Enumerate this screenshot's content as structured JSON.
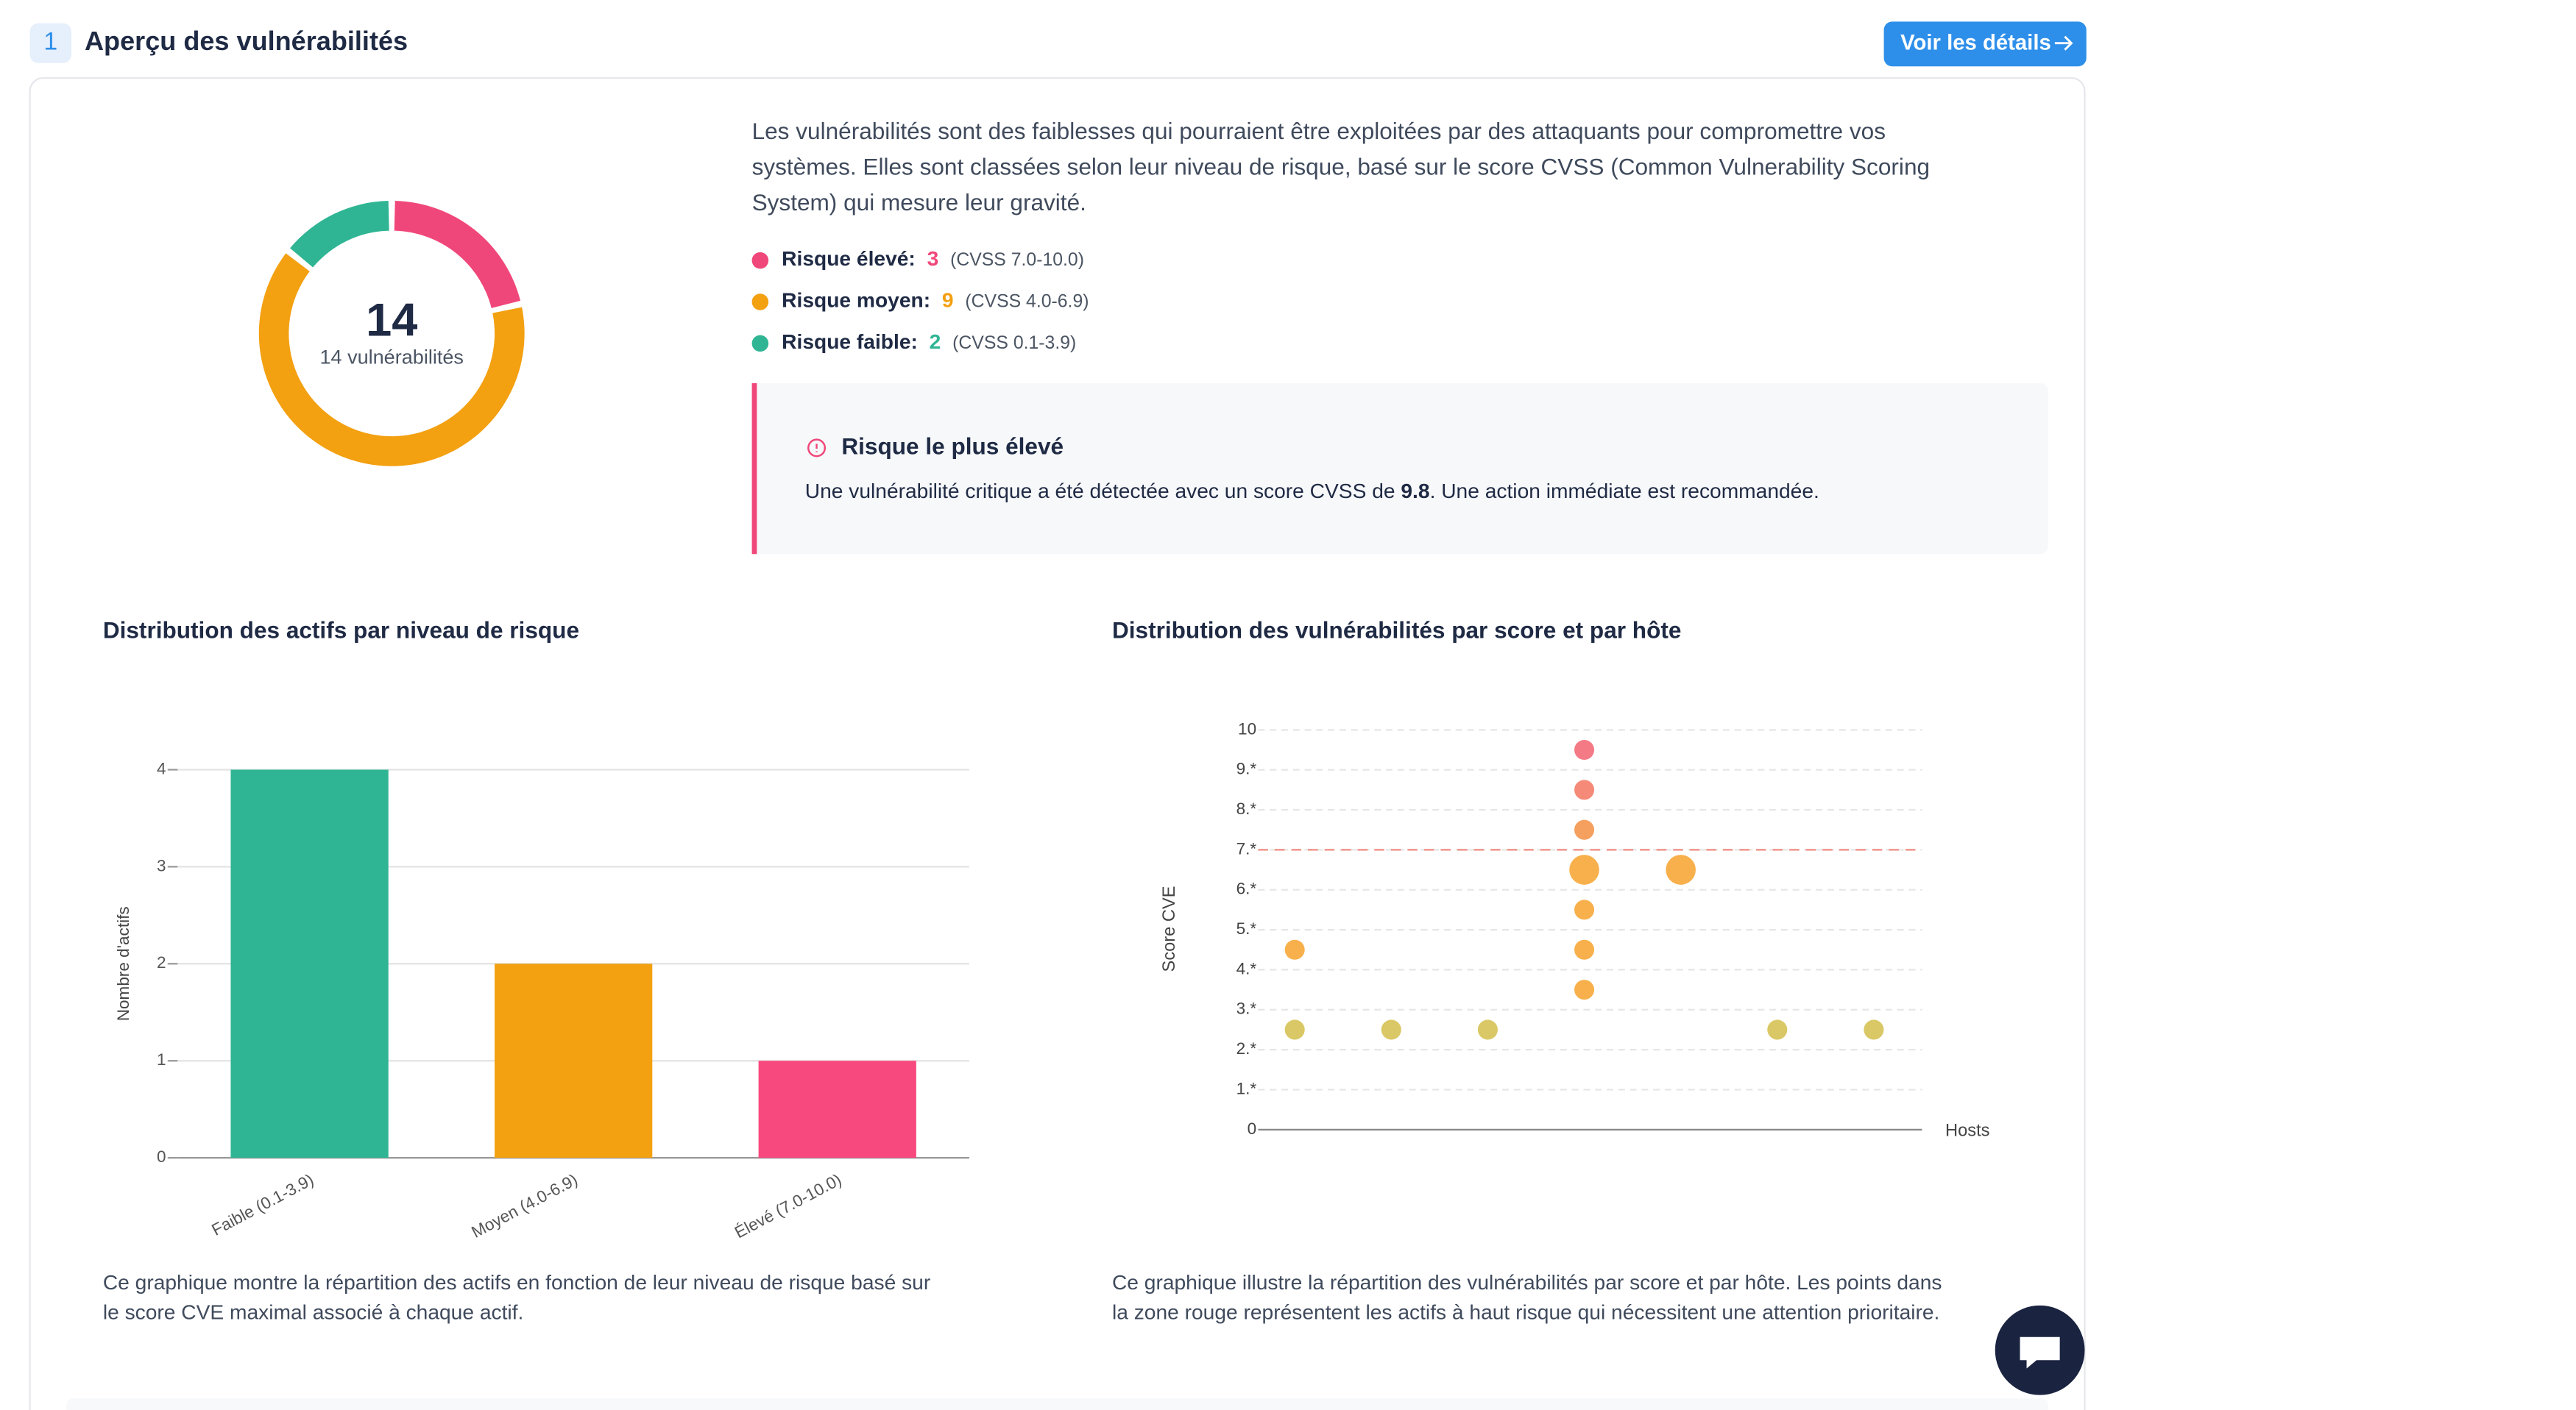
{
  "header": {
    "number": "1",
    "title": "Aperçu des vulnérabilités",
    "button": "Voir les détails"
  },
  "summary": {
    "total": 14,
    "total_label": "14 vulnérabilités",
    "description": [
      "Les vulnérabilités sont des faiblesses qui pourraient être exploitées par des attaquants pour compromettre vos",
      "systèmes. Elles sont classées selon leur niveau de risque, basé sur le score CVSS (Common Vulnerability Scoring",
      "System) qui mesure leur gravité."
    ],
    "risks": [
      {
        "label": "Risque élevé:",
        "count": 3,
        "range": "(CVSS 7.0-10.0)",
        "color": "#f0477a"
      },
      {
        "label": "Risque moyen:",
        "count": 9,
        "range": "(CVSS 4.0-6.9)",
        "color": "#f3a011"
      },
      {
        "label": "Risque faible:",
        "count": 2,
        "range": "(CVSS 0.1-3.9)",
        "color": "#2fb594"
      }
    ]
  },
  "alert": {
    "title": "Risque le plus élevé",
    "text_before": "Une vulnérabilité critique a été détectée avec un score CVSS de ",
    "score": "9.8",
    "text_after": ". Une action immédiate est recommandée."
  },
  "chart_data": [
    {
      "type": "bar",
      "title": "Distribution des actifs par niveau de risque",
      "ylabel": "Nombre d'actifs",
      "categories": [
        "Faible (0.1-3.9)",
        "Moyen (4.0-6.9)",
        "Élevé (7.0-10.0)"
      ],
      "values": [
        4,
        2,
        1
      ],
      "colors": [
        "#2fb594",
        "#f3a011",
        "#f7497e"
      ],
      "ylim": [
        0,
        4
      ],
      "yticks": [
        0,
        1,
        2,
        3,
        4
      ],
      "grid": true,
      "caption": [
        "Ce graphique montre la répartition des actifs en fonction de leur niveau de risque basé sur",
        "le score CVE maximal associé à chaque actif."
      ]
    },
    {
      "type": "scatter",
      "title": "Distribution des vulnérabilités par score et par hôte",
      "ylabel": "Score CVE",
      "xlabel": "Hosts",
      "x": [
        3,
        3,
        3,
        3,
        4,
        3,
        3,
        0,
        3,
        0,
        1,
        2,
        5,
        6
      ],
      "values": [
        9.5,
        8.5,
        7.5,
        6.5,
        6.5,
        5.5,
        4.5,
        4.5,
        3.5,
        2.5,
        2.5,
        2.5,
        2.5,
        2.5
      ],
      "sizes": [
        6,
        6,
        6,
        9,
        9,
        6,
        6,
        6,
        6,
        6,
        6,
        6,
        6,
        6
      ],
      "colors": [
        "#f47a86",
        "#f58a78",
        "#f5a05e",
        "#f8b04c",
        "#f8b04c",
        "#f8b04c",
        "#f8b04c",
        "#f8b04c",
        "#f8b04c",
        "#d9c865",
        "#d9c865",
        "#d9c865",
        "#d9c865",
        "#d9c865"
      ],
      "threshold": 7,
      "xlim": [
        -0.5,
        6.5
      ],
      "ylim": [
        0,
        10
      ],
      "yticks": [
        0,
        {
          "value": 1,
          "label": "1.*"
        },
        {
          "value": 2,
          "label": "2.*"
        },
        {
          "value": 3,
          "label": "3.*"
        },
        {
          "value": 4,
          "label": "4.*"
        },
        {
          "value": 5,
          "label": "5.*"
        },
        {
          "value": 6,
          "label": "6.*"
        },
        {
          "value": 7,
          "label": "7.*"
        },
        {
          "value": 8,
          "label": "8.*"
        },
        {
          "value": 9,
          "label": "9.*"
        },
        10
      ],
      "caption": [
        "Ce graphique illustre la répartition des vulnérabilités par score et par hôte. Les points dans",
        "la zone rouge représentent les actifs à haut risque qui nécessitent une attention prioritaire."
      ]
    }
  ]
}
